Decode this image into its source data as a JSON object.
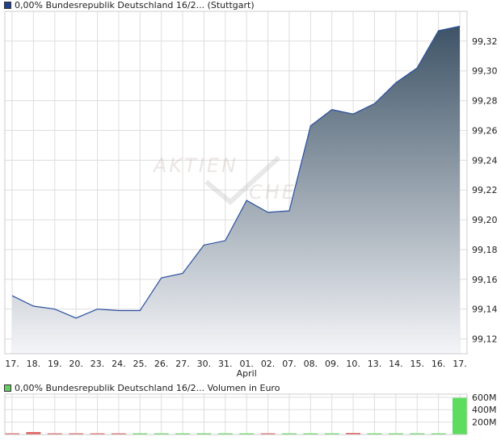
{
  "legend": {
    "price": "0,00% Bundesrepublik Deutschland 16/2... (Stuttgart)",
    "volume": "0,00% Bundesrepublik Deutschland 16/2... Volumen in Euro"
  },
  "colors": {
    "price_swatch": "#1f3f8f",
    "volume_swatch": "#66cc66",
    "line": "#2a4fa0",
    "area_top": "#3d5366",
    "area_bottom": "#f4f5f8",
    "grid": "#dddddd",
    "vol_up": "#5edc5e",
    "vol_down": "#e06060"
  },
  "watermark": {
    "line1": "AKTIEN",
    "line2": "CHECK"
  },
  "chart_data": [
    {
      "type": "area",
      "categories": [
        "17.",
        "18.",
        "19.",
        "20.",
        "23.",
        "24.",
        "25.",
        "26.",
        "27.",
        "30.",
        "31.",
        "01.",
        "02.",
        "07.",
        "08.",
        "09.",
        "10.",
        "13.",
        "14.",
        "15.",
        "16.",
        "17."
      ],
      "month_labels": {
        "11": "April"
      },
      "values": [
        99.149,
        99.142,
        99.14,
        99.134,
        99.14,
        99.139,
        99.139,
        99.161,
        99.164,
        99.183,
        99.186,
        99.213,
        99.205,
        99.206,
        99.263,
        99.274,
        99.271,
        99.278,
        99.292,
        99.302,
        99.327,
        99.33
      ],
      "ylim": [
        99.11,
        99.34
      ],
      "yticks": [
        "99,12",
        "99,14",
        "99,16",
        "99,18",
        "99,20",
        "99,22",
        "99,24",
        "99,26",
        "99,28",
        "99,30",
        "99,32"
      ],
      "ytick_values": [
        99.12,
        99.14,
        99.16,
        99.18,
        99.2,
        99.22,
        99.24,
        99.26,
        99.28,
        99.3,
        99.32
      ],
      "grid": true
    },
    {
      "type": "bar",
      "categories": [
        "17.",
        "18.",
        "19.",
        "20.",
        "23.",
        "24.",
        "25.",
        "26.",
        "27.",
        "30.",
        "31.",
        "01.",
        "02.",
        "07.",
        "08.",
        "09.",
        "10.",
        "13.",
        "14.",
        "15.",
        "16.",
        "17."
      ],
      "values": [
        8,
        40,
        10,
        10,
        8,
        8,
        8,
        8,
        8,
        8,
        8,
        8,
        8,
        8,
        8,
        8,
        25,
        8,
        8,
        8,
        8,
        590
      ],
      "direction": [
        "down",
        "down",
        "down",
        "down",
        "down",
        "down",
        "up",
        "up",
        "up",
        "up",
        "up",
        "up",
        "down",
        "up",
        "up",
        "up",
        "down",
        "up",
        "up",
        "up",
        "up",
        "up"
      ],
      "unit": "M",
      "ylim": [
        0,
        650
      ],
      "yticks": [
        "200M",
        "400M",
        "600M"
      ],
      "ytick_values": [
        200,
        400,
        600
      ],
      "grid": true
    }
  ]
}
